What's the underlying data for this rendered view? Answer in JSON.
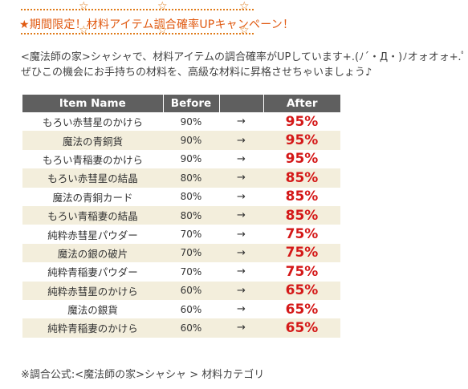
{
  "header": {
    "title_star": "★",
    "title": "期間限定！材料アイテム調合確率UPキャンペーン！"
  },
  "intro": {
    "line1": "<魔法師の家>シャシャで、材料アイテムの調合確率がUPしています+.(ﾉ´・Д・)ﾉオォオォ+.ﾟ",
    "line2": "ぜひこの機会にお手持ちの材料を、高級な材料に昇格させちゃいましょう♪"
  },
  "table": {
    "headers": {
      "name": "Item Name",
      "before": "Before",
      "arrow": "",
      "after": "After"
    },
    "rows": [
      {
        "name": "もろい赤彗星のかけら",
        "before": "90%",
        "arrow": "→",
        "after": "95%"
      },
      {
        "name": "魔法の青銅貨",
        "before": "90%",
        "arrow": "→",
        "after": "95%"
      },
      {
        "name": "もろい青稲妻のかけら",
        "before": "90%",
        "arrow": "→",
        "after": "95%"
      },
      {
        "name": "もろい赤彗星の結晶",
        "before": "80%",
        "arrow": "→",
        "after": "85%"
      },
      {
        "name": "魔法の青銅カード",
        "before": "80%",
        "arrow": "→",
        "after": "85%"
      },
      {
        "name": "もろい青稲妻の結晶",
        "before": "80%",
        "arrow": "→",
        "after": "85%"
      },
      {
        "name": "純粋赤彗星パウダー",
        "before": "70%",
        "arrow": "→",
        "after": "75%"
      },
      {
        "name": "魔法の銀の破片",
        "before": "70%",
        "arrow": "→",
        "after": "75%"
      },
      {
        "name": "純粋青稲妻パウダー",
        "before": "70%",
        "arrow": "→",
        "after": "75%"
      },
      {
        "name": "純粋赤彗星のかけら",
        "before": "60%",
        "arrow": "→",
        "after": "65%"
      },
      {
        "name": "魔法の銀貨",
        "before": "60%",
        "arrow": "→",
        "after": "65%"
      },
      {
        "name": "純粋青稲妻のかけら",
        "before": "60%",
        "arrow": "→",
        "after": "65%"
      }
    ]
  },
  "footnote": "※調合公式:<魔法師の家>シャシャ > 材料カテゴリ",
  "colors": {
    "accent_orange": "#e05a12",
    "after_red": "#d41818",
    "header_gray": "#5f5f5f",
    "stripe": "#f3eedc"
  }
}
